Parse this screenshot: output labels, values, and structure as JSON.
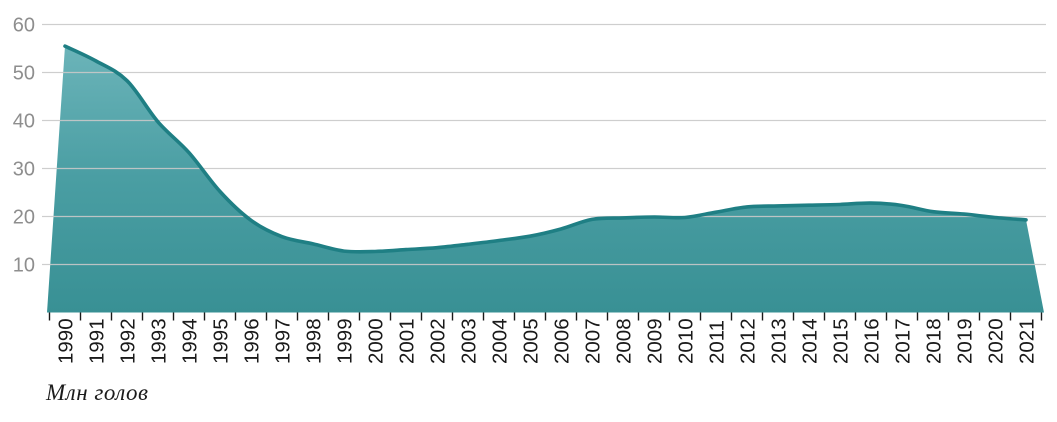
{
  "chart_data": {
    "type": "area",
    "caption": "Млн голов",
    "categories": [
      "1990",
      "1991",
      "1992",
      "1993",
      "1994",
      "1995",
      "1996",
      "1997",
      "1998",
      "1999",
      "2000",
      "2001",
      "2002",
      "2003",
      "2004",
      "2005",
      "2006",
      "2007",
      "2008",
      "2009",
      "2010",
      "2011",
      "2012",
      "2013",
      "2014",
      "2015",
      "2016",
      "2017",
      "2018",
      "2019",
      "2020",
      "2021"
    ],
    "values": [
      55.5,
      52.4,
      48.3,
      39.7,
      33.3,
      25.2,
      19.2,
      15.8,
      14.3,
      12.8,
      12.7,
      13.1,
      13.5,
      14.2,
      15.0,
      15.9,
      17.4,
      19.4,
      19.7,
      19.9,
      19.8,
      20.9,
      22.0,
      22.2,
      22.35,
      22.5,
      22.8,
      22.3,
      21.0,
      20.5,
      19.8,
      19.3
    ],
    "ylim": [
      0,
      60
    ],
    "yticks": [
      "10",
      "20",
      "30",
      "40",
      "50",
      "60"
    ],
    "grid": "horizontal",
    "legend": "none",
    "colors": {
      "area_fill_top": "#6db5ba",
      "area_fill_mid": "#4a9ea3",
      "area_fill_bottom": "#389094",
      "line": "#1f7f84",
      "gridline": "#c9c9c9",
      "y_label": "#8e8e8e",
      "x_label": "#1a1a1a",
      "tick": "#1a1a1a",
      "background": "#ffffff"
    }
  }
}
